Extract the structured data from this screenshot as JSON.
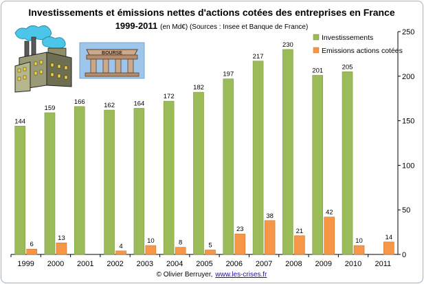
{
  "chart_data": {
    "type": "bar",
    "title": "Investissements et émissions nettes d'actions cotées des entreprises en France",
    "subtitle_years": "1999-2011",
    "subtitle_note": "(en Md€) (Sources : Insee et Banque de France)",
    "categories": [
      "1999",
      "2000",
      "2001",
      "2002",
      "2003",
      "2004",
      "2005",
      "2006",
      "2007",
      "2008",
      "2009",
      "2010",
      "2011"
    ],
    "series": [
      {
        "name": "Investissements",
        "color": "#9bbb59",
        "values": [
          144,
          159,
          166,
          162,
          164,
          172,
          182,
          197,
          217,
          230,
          201,
          205,
          null
        ],
        "labels": [
          "144",
          "159",
          "166",
          "162",
          "164",
          "172",
          "182",
          "197",
          "217",
          "230",
          "201",
          "205",
          ""
        ]
      },
      {
        "name": "Emissions actions cotées",
        "color": "#f79646",
        "values": [
          6,
          13,
          null,
          4,
          10,
          8,
          5,
          23,
          38,
          21,
          42,
          10,
          14
        ],
        "labels": [
          "6",
          "13",
          "",
          "4",
          "10",
          "8",
          "5",
          "23",
          "38",
          "21",
          "42",
          "10",
          "14"
        ]
      }
    ],
    "ylim": [
      0,
      250
    ],
    "yticks": [
      "0",
      "50",
      "100",
      "150",
      "200",
      "250"
    ],
    "y_axis_side": "right",
    "grid": false,
    "legend_position": "top-right"
  },
  "illustrations": {
    "bourse_label": "BOURSE",
    "factory_icon": "factory-illustration",
    "bourse_icon": "stock-exchange-building-illustration"
  },
  "credit": {
    "author": "© Olivier Berruyer,",
    "url": "www.les-crises.fr"
  }
}
